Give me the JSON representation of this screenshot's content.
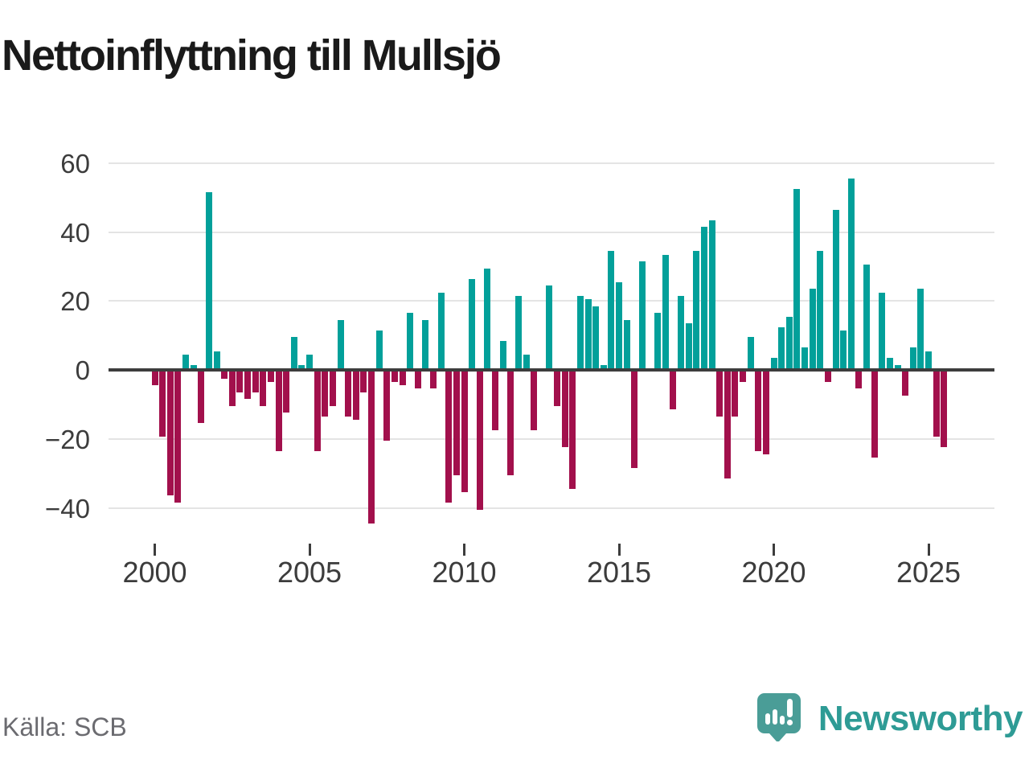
{
  "title": "Nettoinflyttning till Mullsjö",
  "source": "Källa: SCB",
  "brand": {
    "name": "Newsworthy",
    "icon": "bar-chart-speech-bubble-icon",
    "wordmark_color": "#2e9b95",
    "icon_color": "#4a9d97"
  },
  "colors": {
    "positive_bar": "#02a09a",
    "negative_bar": "#a2104c",
    "gridline": "#e4e4e4",
    "zero_line": "#3d3d3d",
    "axis_text": "#3c3c3c",
    "source_text": "#6b6b70",
    "title_text": "#1a1a1a",
    "background": "#ffffff"
  },
  "chart_data": {
    "type": "bar",
    "title": "Nettoinflyttning till Mullsjö",
    "frequency": "quarterly",
    "start_period": "2000-Q1",
    "end_period": "2025-Q3",
    "values": [
      -4,
      -19,
      -36,
      -38,
      4,
      1,
      -15,
      51,
      5,
      -2,
      -10,
      -6,
      -8,
      -6,
      -10,
      -3,
      -23,
      -12,
      9,
      1,
      4,
      -23,
      -13,
      -10,
      14,
      -13,
      -14,
      -6,
      -44,
      11,
      -20,
      -3,
      -4,
      16,
      -5,
      14,
      -5,
      22,
      -38,
      -30,
      -35,
      26,
      -40,
      29,
      -17,
      8,
      -30,
      21,
      4,
      -17,
      0,
      24,
      -10,
      -22,
      -34,
      21,
      20,
      18,
      1,
      34,
      25,
      14,
      -28,
      31,
      0,
      16,
      33,
      -11,
      21,
      13,
      34,
      41,
      43,
      -13,
      -31,
      -13,
      -3,
      9,
      -23,
      -24,
      3,
      12,
      15,
      52,
      6,
      23,
      34,
      -3,
      46,
      11,
      55,
      -5,
      30,
      -25,
      22,
      3,
      1,
      -7,
      6,
      23,
      5,
      -19,
      -22
    ],
    "x_tick_years": [
      2000,
      2005,
      2010,
      2015,
      2020,
      2025
    ],
    "x_tick_labels": [
      "2000",
      "2005",
      "2010",
      "2015",
      "2020",
      "2025"
    ],
    "y_ticks": [
      60,
      40,
      20,
      0,
      -20,
      -40
    ],
    "y_tick_labels": [
      "60",
      "40",
      "20",
      "0",
      "−20",
      "−40"
    ],
    "ylim": [
      -47,
      62
    ],
    "grid": "horizontal",
    "legend": "none",
    "positive_color": "#02a09a",
    "negative_color": "#a2104c"
  }
}
